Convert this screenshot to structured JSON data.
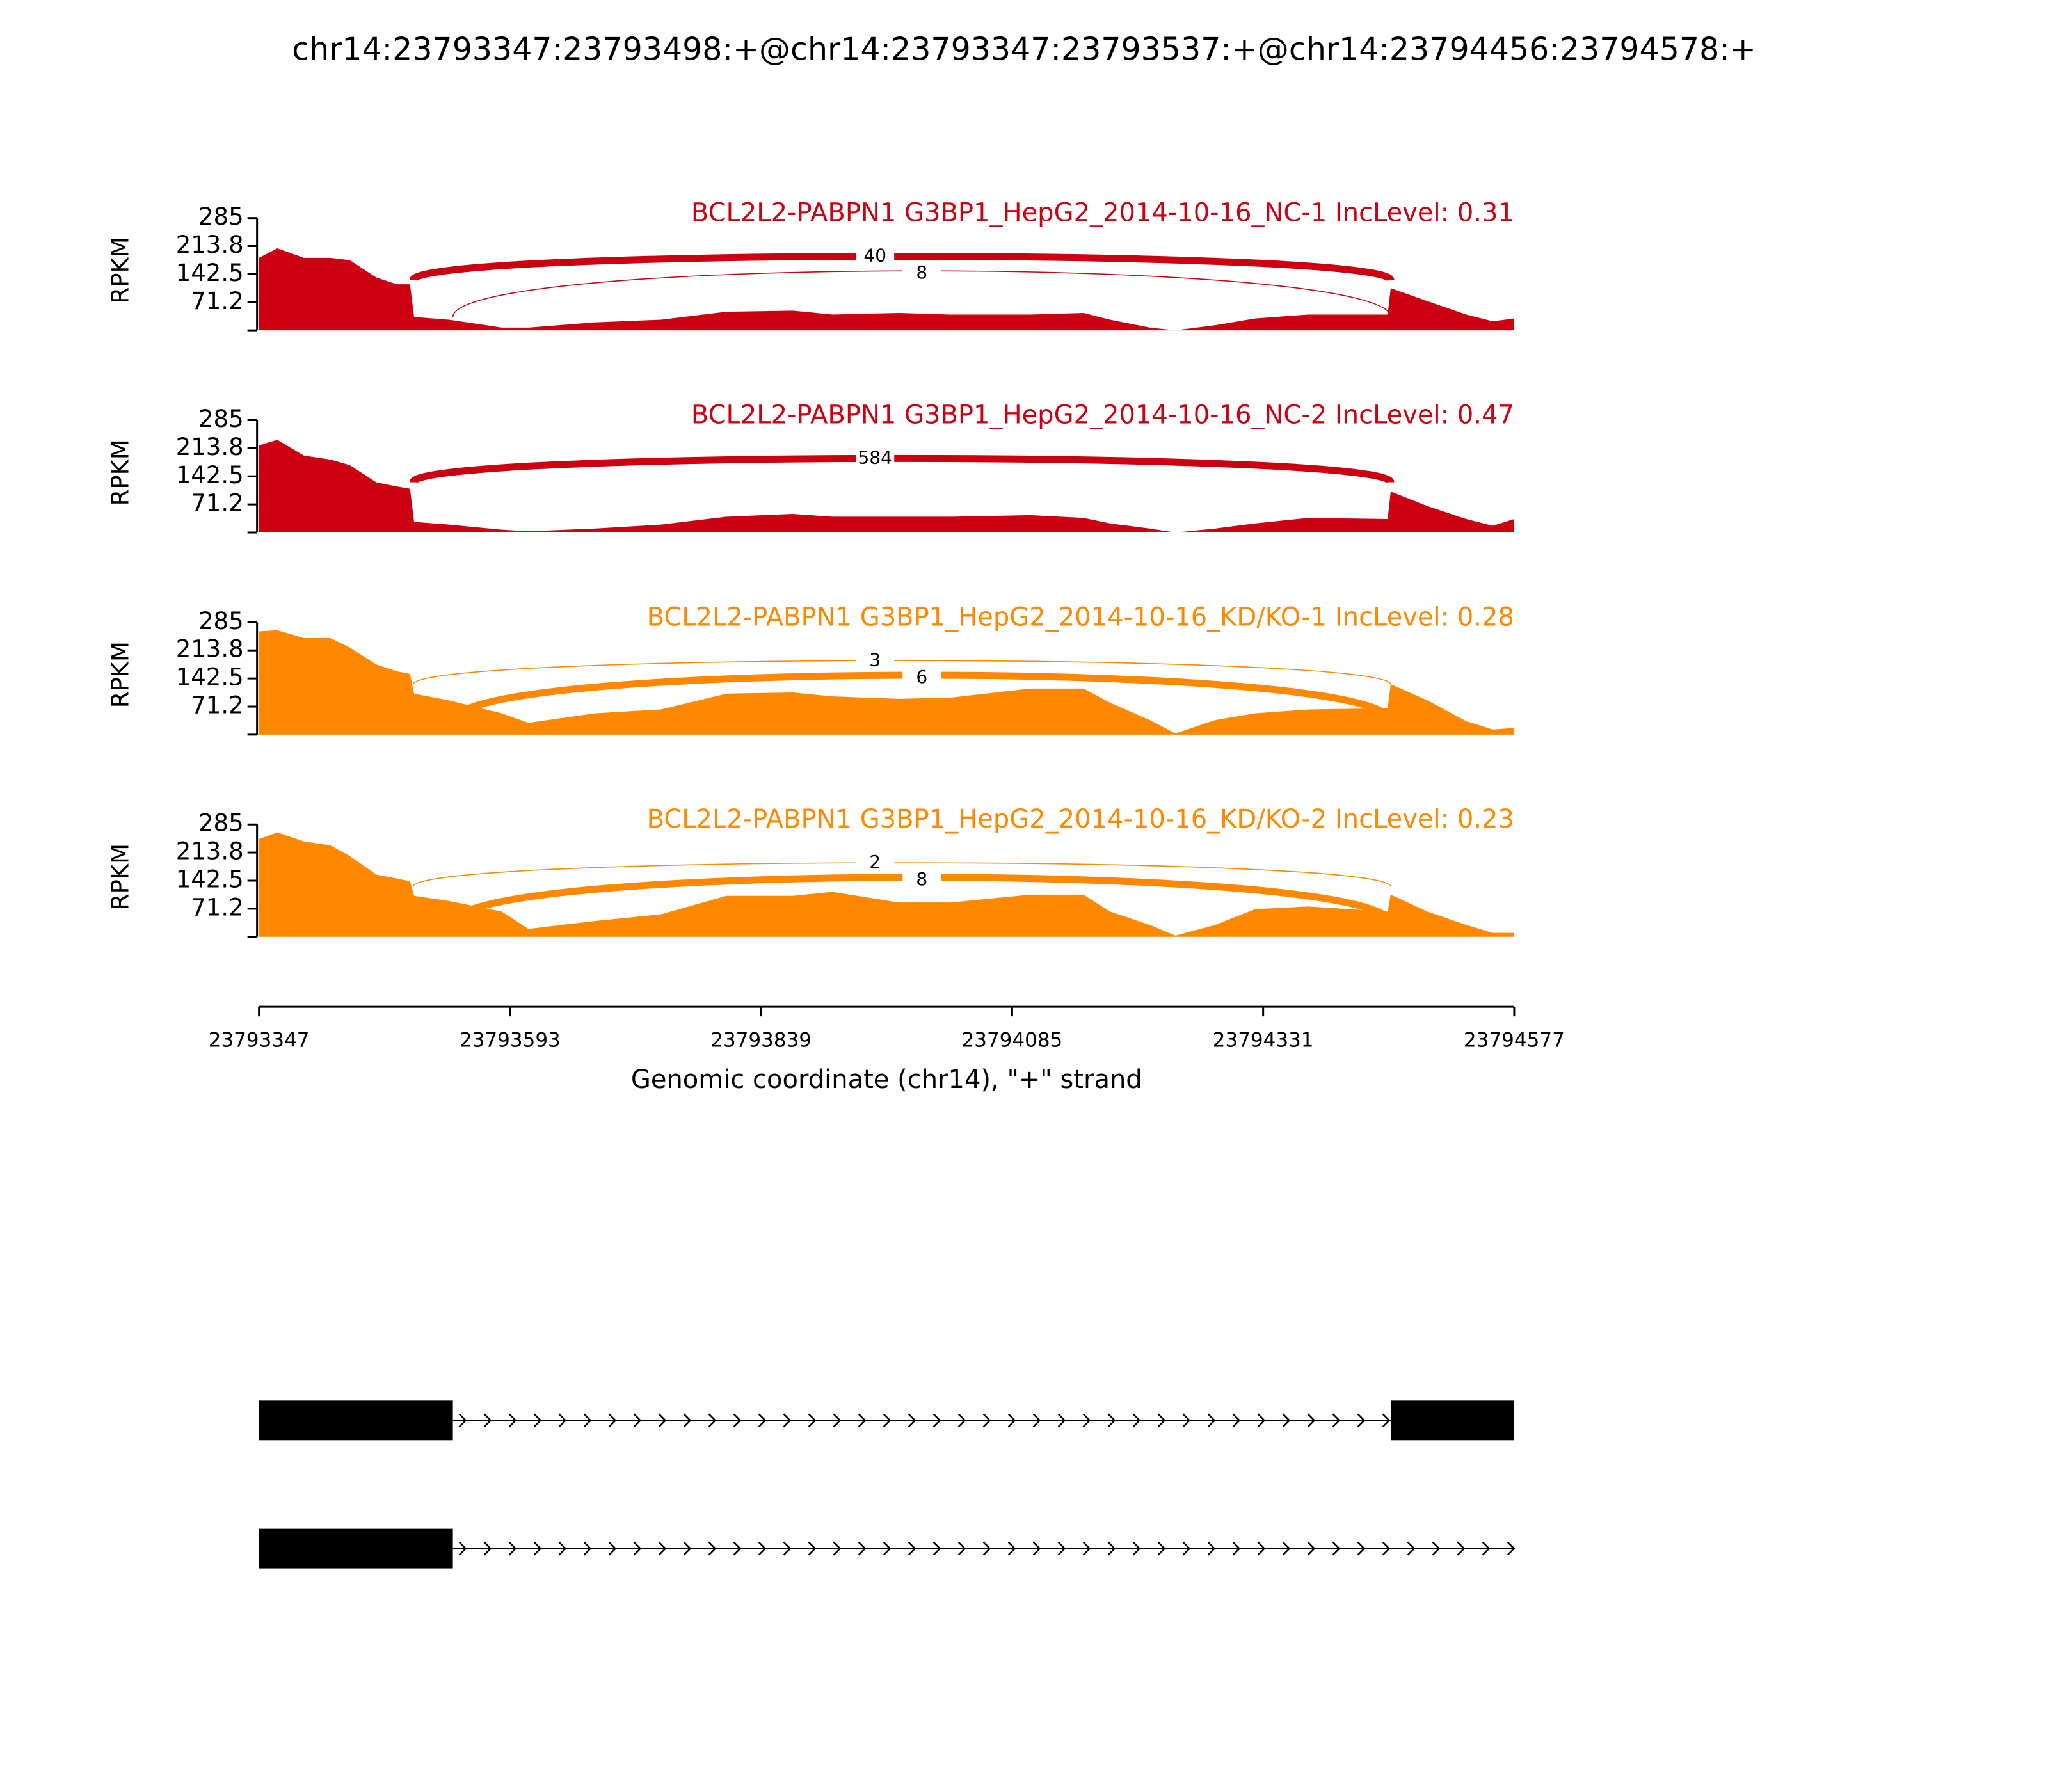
{
  "title": "chr14:23793347:23793498:+@chr14:23793347:23793537:+@chr14:23794456:23794578:+",
  "x_axis": {
    "label": "Genomic coordinate (chr14), \"+\" strand",
    "xlim": [
      23793347,
      23794577
    ],
    "xticks": [
      23793347,
      23793593,
      23793839,
      23794085,
      23794331,
      23794577
    ]
  },
  "chart_data": [
    {
      "type": "area",
      "title": "BCL2L2-PABPN1 G3BP1_HepG2_2014-10-16_NC-1 IncLevel: 0.31",
      "ylabel": "RPKM",
      "color": "#cc0011",
      "ylim": [
        0,
        285
      ],
      "yticks": [
        71.2,
        142.5,
        213.8,
        285
      ],
      "x": [
        23793347,
        23793365,
        23793391,
        23793417,
        23793436,
        23793462,
        23793482,
        23793495,
        23793499,
        23793533,
        23793585,
        23793611,
        23793676,
        23793741,
        23793805,
        23793870,
        23793909,
        23793974,
        23794025,
        23794103,
        23794155,
        23794181,
        23794220,
        23794245,
        23794284,
        23794323,
        23794375,
        23794453,
        23794456,
        23794492,
        23794530,
        23794556,
        23794577
      ],
      "values": [
        184,
        208,
        184,
        184,
        178,
        134,
        117,
        117,
        34,
        27,
        7,
        7,
        20,
        27,
        47,
        50,
        40,
        44,
        40,
        40,
        44,
        27,
        7,
        0,
        13,
        30,
        40,
        40,
        107,
        74,
        40,
        23,
        30
      ],
      "junctions": [
        {
          "start": 23793498,
          "end": 23794456,
          "count": 40
        },
        {
          "start": 23793537,
          "end": 23794456,
          "count": 8
        }
      ]
    },
    {
      "type": "area",
      "title": "BCL2L2-PABPN1 G3BP1_HepG2_2014-10-16_NC-2 IncLevel: 0.47",
      "ylabel": "RPKM",
      "color": "#cc0011",
      "ylim": [
        0,
        285
      ],
      "yticks": [
        71.2,
        142.5,
        213.8,
        285
      ],
      "x": [
        23793347,
        23793365,
        23793391,
        23793417,
        23793436,
        23793462,
        23793482,
        23793495,
        23793499,
        23793533,
        23793585,
        23793611,
        23793676,
        23793741,
        23793805,
        23793870,
        23793909,
        23793974,
        23794025,
        23794103,
        23794155,
        23794181,
        23794220,
        23794245,
        23794284,
        23794323,
        23794375,
        23794453,
        23794456,
        23794492,
        23794530,
        23794556,
        23794577
      ],
      "values": [
        221,
        235,
        195,
        185,
        171,
        127,
        117,
        111,
        27,
        20,
        7,
        3,
        10,
        20,
        40,
        47,
        40,
        40,
        40,
        44,
        37,
        23,
        10,
        0,
        10,
        23,
        37,
        34,
        104,
        67,
        34,
        17,
        34
      ],
      "junctions": [
        {
          "start": 23793498,
          "end": 23794456,
          "count": 584
        }
      ]
    },
    {
      "type": "area",
      "title": "BCL2L2-PABPN1 G3BP1_HepG2_2014-10-16_KD/KO-1 IncLevel: 0.28",
      "ylabel": "RPKM",
      "color": "#ff8800",
      "ylim": [
        0,
        285
      ],
      "yticks": [
        71.2,
        142.5,
        213.8,
        285
      ],
      "x": [
        23793347,
        23793365,
        23793391,
        23793417,
        23793436,
        23793462,
        23793482,
        23793495,
        23793499,
        23793533,
        23793585,
        23793611,
        23793676,
        23793741,
        23793805,
        23793870,
        23793909,
        23793974,
        23794025,
        23794103,
        23794155,
        23794181,
        23794220,
        23794245,
        23794284,
        23794323,
        23794375,
        23794453,
        23794456,
        23794492,
        23794530,
        23794556,
        23794577
      ],
      "values": [
        262,
        265,
        245,
        245,
        221,
        178,
        161,
        154,
        104,
        87,
        54,
        30,
        54,
        64,
        104,
        107,
        97,
        91,
        94,
        117,
        117,
        81,
        37,
        3,
        37,
        54,
        64,
        67,
        128,
        87,
        34,
        13,
        17
      ],
      "junctions": [
        {
          "start": 23793498,
          "end": 23794456,
          "count": 3
        },
        {
          "start": 23793537,
          "end": 23794456,
          "count": 6
        }
      ]
    },
    {
      "type": "area",
      "title": "BCL2L2-PABPN1 G3BP1_HepG2_2014-10-16_KD/KO-2 IncLevel: 0.23",
      "ylabel": "RPKM",
      "color": "#ff8800",
      "ylim": [
        0,
        285
      ],
      "yticks": [
        71.2,
        142.5,
        213.8,
        285
      ],
      "x": [
        23793347,
        23793365,
        23793391,
        23793417,
        23793436,
        23793462,
        23793482,
        23793495,
        23793499,
        23793533,
        23793585,
        23793611,
        23793676,
        23793741,
        23793805,
        23793870,
        23793909,
        23793974,
        23794025,
        23794103,
        23794155,
        23794181,
        23794220,
        23794245,
        23794284,
        23794323,
        23794375,
        23794453,
        23794456,
        23794492,
        23794530,
        23794556,
        23794577
      ],
      "values": [
        248,
        265,
        242,
        232,
        205,
        158,
        148,
        141,
        104,
        91,
        64,
        20,
        40,
        57,
        104,
        104,
        114,
        87,
        87,
        107,
        107,
        64,
        30,
        3,
        30,
        70,
        77,
        64,
        107,
        64,
        30,
        10,
        10
      ],
      "junctions": [
        {
          "start": 23793498,
          "end": 23794456,
          "count": 2
        },
        {
          "start": 23793537,
          "end": 23794456,
          "count": 8
        }
      ]
    }
  ],
  "transcripts": [
    {
      "exons": [
        [
          23793347,
          23793537
        ],
        [
          23794456,
          23794577
        ]
      ]
    },
    {
      "exons": [
        [
          23793347,
          23793537
        ]
      ]
    }
  ]
}
